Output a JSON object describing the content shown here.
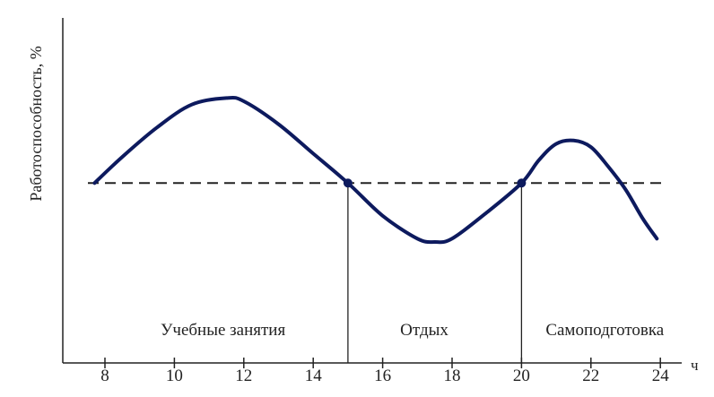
{
  "chart_data": {
    "type": "line",
    "title": "",
    "ylabel": "Работоспособность, %",
    "xlabel": "ч",
    "xlim": [
      7,
      25
    ],
    "ylim": [
      0,
      100
    ],
    "x_ticks": [
      8,
      10,
      12,
      14,
      16,
      18,
      20,
      22,
      24
    ],
    "x_tick_labels": [
      "8",
      "10",
      "12",
      "14",
      "16",
      "18",
      "20",
      "22",
      "24"
    ],
    "grid": false,
    "series": [
      {
        "x": [
          7.7,
          8.5,
          9.5,
          10.5,
          11.5,
          12.0,
          13.0,
          14.0,
          15.0,
          16.0,
          17.0,
          17.5,
          18.0,
          19.0,
          20.0,
          20.5,
          21.0,
          21.5,
          22.0,
          22.5,
          23.0,
          23.5,
          23.9
        ],
        "y": [
          55,
          63,
          72,
          79,
          81,
          80,
          73,
          64,
          55,
          45,
          38,
          37,
          38,
          46,
          55,
          62,
          67,
          68,
          66,
          60,
          53,
          44,
          38
        ]
      }
    ],
    "reference_line": {
      "y": 55,
      "style": "dashed"
    },
    "markers": [
      {
        "x": 15,
        "y": 55
      },
      {
        "x": 20,
        "y": 55
      }
    ],
    "dividers": [
      15,
      20
    ],
    "regions": [
      {
        "label": "Учебные занятия",
        "x_center": 11.4
      },
      {
        "label": "Отдых",
        "x_center": 17.2
      },
      {
        "label": "Самоподготовка",
        "x_center": 22.4
      }
    ]
  }
}
